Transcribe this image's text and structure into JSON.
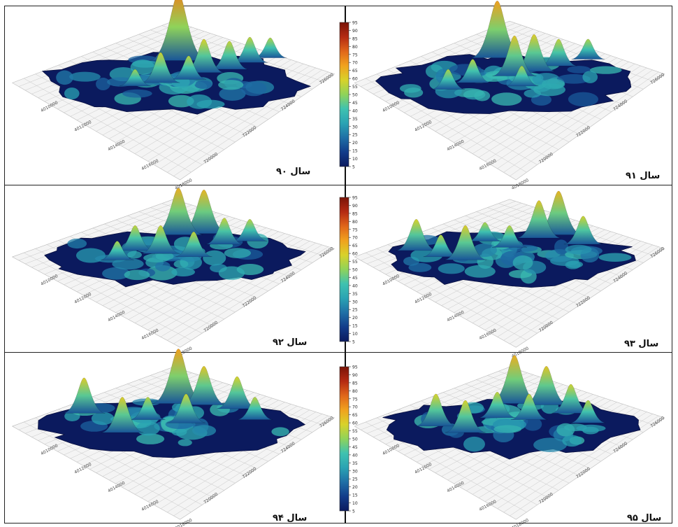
{
  "chart_data": [
    {
      "type": "surface",
      "title": "سال ۹۰",
      "axis_labels_y": [
        "4010000",
        "4012000",
        "4014000",
        "4016000",
        "4018000"
      ],
      "axis_labels_x": [
        "720000",
        "722000",
        "724000",
        "726000"
      ],
      "colorbar_ticks": [
        5,
        10,
        15,
        20,
        25,
        30,
        35,
        40,
        45,
        50,
        55,
        60,
        65,
        70,
        75,
        80,
        85,
        90,
        95
      ]
    },
    {
      "type": "surface",
      "title": "سال ۹۱",
      "axis_labels_y": [
        "4010000",
        "4012000",
        "4014000",
        "4016000",
        "4018000"
      ],
      "axis_labels_x": [
        "720000",
        "722000",
        "724000",
        "726000"
      ]
    },
    {
      "type": "surface",
      "title": "سال ۹۲",
      "axis_labels_y": [
        "4010000",
        "4012000",
        "4014000",
        "4016000",
        "4018000"
      ],
      "axis_labels_x": [
        "720000",
        "722000",
        "724000",
        "726000"
      ],
      "colorbar_ticks": [
        5,
        10,
        15,
        20,
        25,
        30,
        35,
        40,
        45,
        50,
        55,
        60,
        65,
        70,
        75,
        80,
        85,
        90,
        95
      ]
    },
    {
      "type": "surface",
      "title": "سال ۹۳",
      "axis_labels_y": [
        "4010000",
        "4012000",
        "4014000",
        "4016000",
        "4018000"
      ],
      "axis_labels_x": [
        "720000",
        "722000",
        "724000",
        "726000"
      ]
    },
    {
      "type": "surface",
      "title": "سال ۹۴",
      "axis_labels_y": [
        "4010000",
        "4012000",
        "4014000",
        "4016000",
        "4018000"
      ],
      "axis_labels_x": [
        "720000",
        "722000",
        "724000",
        "726000"
      ],
      "colorbar_ticks": [
        5,
        10,
        15,
        20,
        25,
        30,
        35,
        40,
        45,
        50,
        55,
        60,
        65,
        70,
        75,
        80,
        85,
        90,
        95
      ]
    },
    {
      "type": "surface",
      "title": "سال ۹۵",
      "axis_labels_y": [
        "4010000",
        "4012000",
        "4014000",
        "4016000",
        "4018000"
      ],
      "axis_labels_x": [
        "720000",
        "722000",
        "724000",
        "726000"
      ]
    }
  ],
  "colors": {
    "ramp": [
      "#0b1a5e",
      "#123c8a",
      "#1f6fa6",
      "#2aa3b3",
      "#3fc2b0",
      "#8fd35a",
      "#d8d22a",
      "#f0a21e",
      "#e0661a",
      "#b42a12",
      "#7a1408"
    ],
    "base_plane": "#f4f4f4",
    "grid": "#c8c8c8"
  }
}
